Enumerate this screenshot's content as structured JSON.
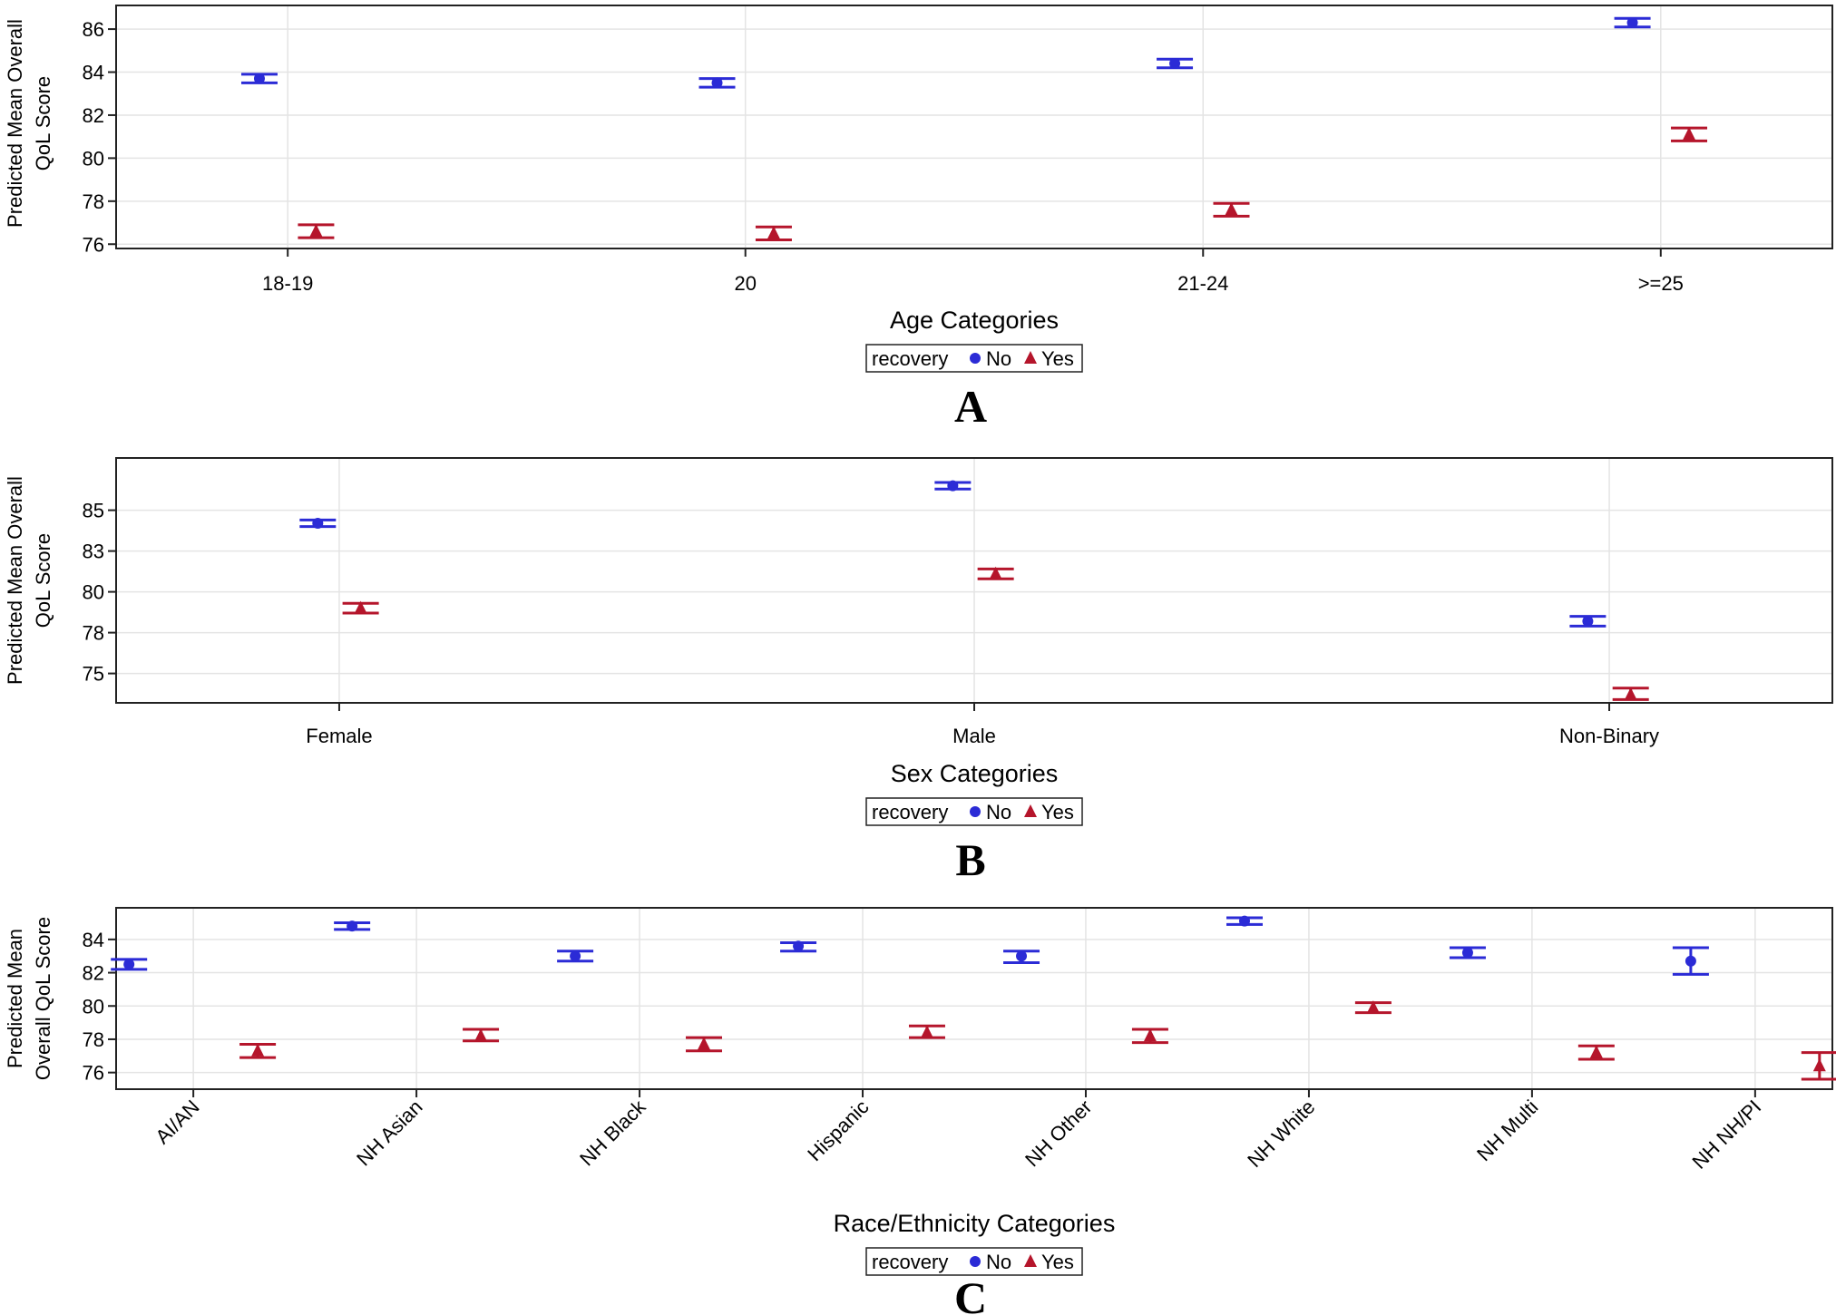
{
  "chart_data": [
    {
      "type": "scatter",
      "panel_label": "A",
      "xlabel": "Age Categories",
      "ylabel_lines": [
        "Predicted Mean Overall",
        "QoL Score"
      ],
      "categories": [
        "18-19",
        "20",
        "21-24",
        ">=25"
      ],
      "ylim": [
        75.8,
        87.1
      ],
      "yticks": [
        76,
        78,
        80,
        82,
        84,
        86
      ],
      "series": [
        {
          "name": "No",
          "marker": "circle",
          "color": "#2b2bd6",
          "values": [
            83.7,
            83.5,
            84.4,
            86.3
          ],
          "lower": [
            83.5,
            83.3,
            84.2,
            86.1
          ],
          "upper": [
            83.9,
            83.7,
            84.6,
            86.5
          ]
        },
        {
          "name": "Yes",
          "marker": "triangle",
          "color": "#b5152b",
          "values": [
            76.6,
            76.5,
            77.6,
            81.1
          ],
          "lower": [
            76.3,
            76.2,
            77.3,
            80.8
          ],
          "upper": [
            76.9,
            76.8,
            77.9,
            81.4
          ]
        }
      ],
      "legend": {
        "title": "recovery",
        "items": [
          "No",
          "Yes"
        ]
      }
    },
    {
      "type": "scatter",
      "panel_label": "B",
      "xlabel": "Sex Categories",
      "ylabel_lines": [
        "Predicted Mean Overall",
        "QoL Score"
      ],
      "categories": [
        "Female",
        "Male",
        "Non-Binary"
      ],
      "ylim": [
        73.2,
        88.2
      ],
      "ytick_positions": [
        75,
        77.5,
        80,
        82.5,
        85
      ],
      "ytick_labels": [
        "75",
        "78",
        "80",
        "83",
        "85"
      ],
      "series": [
        {
          "name": "No",
          "marker": "circle",
          "color": "#2b2bd6",
          "values": [
            84.2,
            86.5,
            78.2
          ],
          "lower": [
            84.0,
            86.3,
            77.9
          ],
          "upper": [
            84.4,
            86.7,
            78.5
          ]
        },
        {
          "name": "Yes",
          "marker": "triangle",
          "color": "#b5152b",
          "values": [
            79.0,
            81.1,
            73.7
          ],
          "lower": [
            78.7,
            80.8,
            73.4
          ],
          "upper": [
            79.3,
            81.4,
            74.1
          ]
        }
      ],
      "legend": {
        "title": "recovery",
        "items": [
          "No",
          "Yes"
        ]
      }
    },
    {
      "type": "scatter",
      "panel_label": "C",
      "xlabel": "Race/Ethnicity Categories",
      "ylabel_lines": [
        "Predicted Mean",
        "Overall QoL Score"
      ],
      "categories": [
        "AI/AN",
        "NH Asian",
        "NH Black",
        "Hispanic",
        "NH Other",
        "NH White",
        "NH Multi",
        "NH NH/PI"
      ],
      "ylim": [
        75.0,
        85.9
      ],
      "yticks": [
        76,
        78,
        80,
        82,
        84
      ],
      "series": [
        {
          "name": "No",
          "marker": "circle",
          "color": "#2b2bd6",
          "values": [
            82.5,
            84.8,
            83.0,
            83.6,
            83.0,
            85.1,
            83.2,
            82.7
          ],
          "lower": [
            82.2,
            84.6,
            82.7,
            83.3,
            82.6,
            84.9,
            82.9,
            81.9
          ],
          "upper": [
            82.8,
            85.0,
            83.3,
            83.8,
            83.3,
            85.3,
            83.5,
            83.5
          ]
        },
        {
          "name": "Yes",
          "marker": "triangle",
          "color": "#b5152b",
          "values": [
            77.3,
            78.2,
            77.7,
            78.4,
            78.2,
            79.9,
            77.2,
            76.4
          ],
          "lower": [
            76.9,
            77.9,
            77.3,
            78.1,
            77.8,
            79.6,
            76.8,
            75.6
          ],
          "upper": [
            77.7,
            78.6,
            78.1,
            78.8,
            78.6,
            80.2,
            77.6,
            77.2
          ]
        }
      ],
      "legend": {
        "title": "recovery",
        "items": [
          "No",
          "Yes"
        ]
      }
    }
  ]
}
